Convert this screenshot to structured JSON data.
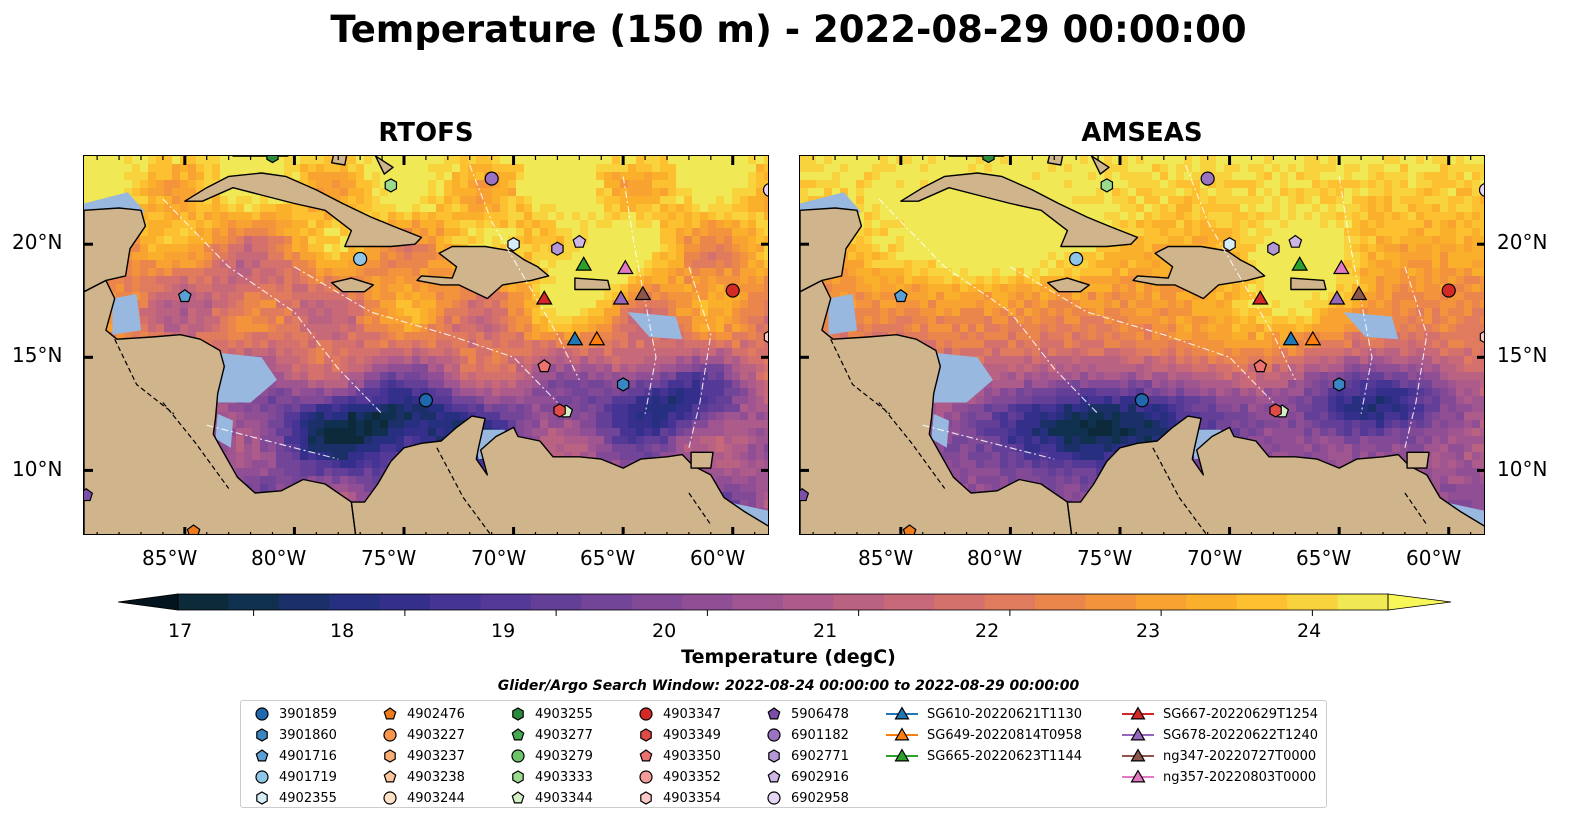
{
  "title": "Temperature (150 m) - 2022-08-29 00:00:00",
  "panels": [
    {
      "title": "RTOFS",
      "variant": "rtofs"
    },
    {
      "title": "AMSEAS",
      "variant": "amseas"
    }
  ],
  "axes": {
    "lat_labels": [
      "20°N",
      "15°N",
      "10°N"
    ],
    "lat_values": [
      20,
      15,
      10
    ],
    "lon_labels": [
      "85°W",
      "80°W",
      "75°W",
      "70°W",
      "65°W",
      "60°W"
    ],
    "lon_values": [
      -85,
      -80,
      -75,
      -70,
      -65,
      -60
    ],
    "lon_range": [
      -89.6,
      -58.3
    ],
    "lat_range": [
      7.1,
      23.9
    ]
  },
  "colorbar": {
    "label": "Temperature (degC)",
    "ticks": [
      "17",
      "18",
      "19",
      "20",
      "21",
      "22",
      "23",
      "24"
    ],
    "tick_values": [
      17,
      18,
      19,
      20,
      21,
      22,
      23,
      24
    ],
    "range": [
      16.5,
      24.5
    ],
    "colors": [
      "#0d2a3a",
      "#10304f",
      "#1b3068",
      "#262f80",
      "#352f8c",
      "#453494",
      "#553996",
      "#643f98",
      "#734598",
      "#824a96",
      "#904f94",
      "#9e5590",
      "#ac5b8a",
      "#ba6282",
      "#c76979",
      "#d4716d",
      "#e07b5d",
      "#ea864c",
      "#f3943c",
      "#f8a231",
      "#fbb02b",
      "#fcc030",
      "#f9d33e",
      "#f0e854"
    ]
  },
  "search_window": "Glider/Argo Search Window: 2022-08-24 00:00:00 to 2022-08-29 00:00:00",
  "legend": [
    [
      {
        "label": "3901859",
        "marker": "circle",
        "color": "#1f68ad"
      },
      {
        "label": "3901860",
        "marker": "hexagon",
        "color": "#3a86c3"
      },
      {
        "label": "4901716",
        "marker": "pentagon",
        "color": "#5a9fd6"
      },
      {
        "label": "4901719",
        "marker": "circle",
        "color": "#8fc5e6"
      },
      {
        "label": "4902355",
        "marker": "hexagon",
        "color": "#d6ecf7"
      }
    ],
    [
      {
        "label": "4902476",
        "marker": "pentagon",
        "color": "#f07b1b"
      },
      {
        "label": "4903227",
        "marker": "circle",
        "color": "#f8954a"
      },
      {
        "label": "4903237",
        "marker": "hexagon",
        "color": "#f9ad73"
      },
      {
        "label": "4903238",
        "marker": "pentagon",
        "color": "#fbc49b"
      },
      {
        "label": "4903244",
        "marker": "circle",
        "color": "#fde0c5"
      }
    ],
    [
      {
        "label": "4903255",
        "marker": "hexagon",
        "color": "#2b8a3e"
      },
      {
        "label": "4903277",
        "marker": "pentagon",
        "color": "#47a852"
      },
      {
        "label": "4903279",
        "marker": "circle",
        "color": "#6cc56b"
      },
      {
        "label": "4903333",
        "marker": "hexagon",
        "color": "#9bdb8e"
      },
      {
        "label": "4903344",
        "marker": "pentagon",
        "color": "#d2f0c4"
      }
    ],
    [
      {
        "label": "4903347",
        "marker": "circle",
        "color": "#d42a27"
      },
      {
        "label": "4903349",
        "marker": "hexagon",
        "color": "#e04a47"
      },
      {
        "label": "4903350",
        "marker": "pentagon",
        "color": "#ec7270"
      },
      {
        "label": "4903352",
        "marker": "circle",
        "color": "#f39c99"
      },
      {
        "label": "4903354",
        "marker": "hexagon",
        "color": "#fbc9c6"
      }
    ],
    [
      {
        "label": "5906478",
        "marker": "pentagon",
        "color": "#7b4fa8"
      },
      {
        "label": "6901182",
        "marker": "circle",
        "color": "#9a72c2"
      },
      {
        "label": "6902771",
        "marker": "hexagon",
        "color": "#b596d6"
      },
      {
        "label": "6902916",
        "marker": "pentagon",
        "color": "#cdb5e6"
      },
      {
        "label": "6902958",
        "marker": "circle",
        "color": "#e6d6f4"
      }
    ],
    [
      {
        "label": "SG610-20220621T1130",
        "marker": "triangle",
        "color": "#1f77b4"
      },
      {
        "label": "SG649-20220814T0958",
        "marker": "triangle",
        "color": "#ff7f0e"
      },
      {
        "label": "SG665-20220623T1144",
        "marker": "triangle",
        "color": "#2ca02c"
      }
    ],
    [
      {
        "label": "SG667-20220629T1254",
        "marker": "triangle",
        "color": "#d62728"
      },
      {
        "label": "SG678-20220622T1240",
        "marker": "triangle",
        "color": "#9467bd"
      },
      {
        "label": "ng347-20220727T0000",
        "marker": "triangle",
        "color": "#8c564b"
      },
      {
        "label": "ng357-20220803T0000",
        "marker": "triangle",
        "color": "#e377c2"
      }
    ]
  ],
  "platforms": [
    {
      "id": "3901859",
      "lon": -74.0,
      "lat": 13.1
    },
    {
      "id": "3901860",
      "lon": -65.0,
      "lat": 13.8
    },
    {
      "id": "4901716",
      "lon": -85.0,
      "lat": 17.7
    },
    {
      "id": "4901719",
      "lon": -77.0,
      "lat": 19.35
    },
    {
      "id": "4902355",
      "lon": -70.0,
      "lat": 20.0
    },
    {
      "id": "4902476",
      "lon": -84.6,
      "lat": 7.3
    },
    {
      "id": "4903255",
      "lon": -81.0,
      "lat": 23.9
    },
    {
      "id": "4903333",
      "lon": -75.6,
      "lat": 22.6
    },
    {
      "id": "4903344",
      "lon": -67.6,
      "lat": 12.6
    },
    {
      "id": "4903347",
      "lon": -60.0,
      "lat": 17.95
    },
    {
      "id": "4903349",
      "lon": -67.9,
      "lat": 12.65
    },
    {
      "id": "4903350",
      "lon": -68.6,
      "lat": 14.6
    },
    {
      "id": "4903354",
      "lon": -58.3,
      "lat": 15.9
    },
    {
      "id": "5906478",
      "lon": -89.5,
      "lat": 8.9
    },
    {
      "id": "6901182",
      "lon": -71.0,
      "lat": 22.9
    },
    {
      "id": "6902771",
      "lon": -68.0,
      "lat": 19.8
    },
    {
      "id": "6902916",
      "lon": -67.0,
      "lat": 20.1
    },
    {
      "id": "6902958",
      "lon": -58.3,
      "lat": 22.4
    },
    {
      "id": "SG610-20220621T1130",
      "lon": -67.2,
      "lat": 15.8
    },
    {
      "id": "SG649-20220814T0958",
      "lon": -66.2,
      "lat": 15.8
    },
    {
      "id": "SG665-20220623T1144",
      "lon": -66.8,
      "lat": 19.1
    },
    {
      "id": "SG667-20220629T1254",
      "lon": -68.6,
      "lat": 17.6
    },
    {
      "id": "SG678-20220622T1240",
      "lon": -65.1,
      "lat": 17.6
    },
    {
      "id": "ng347-20220727T0000",
      "lon": -64.1,
      "lat": 17.8
    },
    {
      "id": "ng357-20220803T0000",
      "lon": -64.9,
      "lat": 18.95
    }
  ],
  "colors": {
    "land": "#d0b48c",
    "shallow": "#98b8e0",
    "coast": "#000000"
  }
}
